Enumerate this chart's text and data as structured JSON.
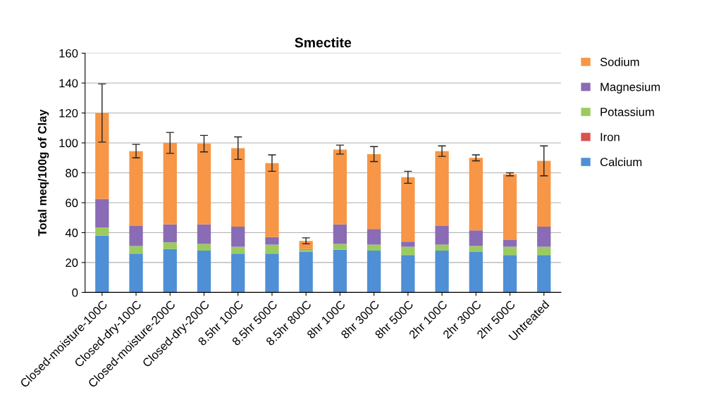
{
  "chart_data": {
    "type": "bar",
    "title": "Smectite",
    "ylabel": "Total meq/100g of Clay",
    "categories": [
      "Closed-moisture-100C",
      "Closed-dry-100C",
      "Closed-moisture-200C",
      "Closed-dry-200C",
      "8.5hr 100C",
      "8.5hr 500C",
      "8.5hr 800C",
      "8hr 100C",
      "8hr 300C",
      "8hr 500C",
      "2hr 100C",
      "2hr 300C",
      "2hr 500C",
      "Untreated"
    ],
    "stacked": true,
    "series": [
      {
        "name": "Calcium",
        "color": "#4f8fd6",
        "values": [
          38,
          26,
          29,
          28,
          26,
          26,
          27,
          28.5,
          28,
          25,
          28,
          27,
          25,
          25
        ]
      },
      {
        "name": "Iron",
        "color": "#d9534f",
        "values": [
          0,
          0,
          0,
          0,
          0,
          0,
          0,
          0,
          0,
          0,
          0,
          0,
          0,
          0
        ]
      },
      {
        "name": "Potassium",
        "color": "#9bcb5f",
        "values": [
          5.5,
          5,
          4.5,
          4.5,
          4.5,
          6,
          1.5,
          4,
          4,
          5.5,
          4,
          4,
          5.5,
          5.5
        ]
      },
      {
        "name": "Magnesium",
        "color": "#8a6bb5",
        "values": [
          19,
          13.5,
          12,
          13,
          13.5,
          5,
          0.5,
          13,
          10.5,
          3.5,
          12.5,
          10.5,
          4.5,
          13.5
        ]
      },
      {
        "name": "Sodium",
        "color": "#f79646",
        "values": [
          57.5,
          50,
          54.5,
          54,
          52.5,
          49.5,
          5.5,
          50,
          50,
          43,
          50,
          48.5,
          44,
          44
        ],
        "errors": [
          19.5,
          4.5,
          7,
          5.5,
          7.5,
          5.5,
          2,
          3,
          5,
          4,
          3.5,
          2,
          1,
          10
        ]
      }
    ],
    "ylim": [
      0,
      160
    ],
    "yticks": [
      0,
      20,
      40,
      60,
      80,
      100,
      120,
      140,
      160
    ],
    "grid": "y",
    "legend": "right"
  }
}
